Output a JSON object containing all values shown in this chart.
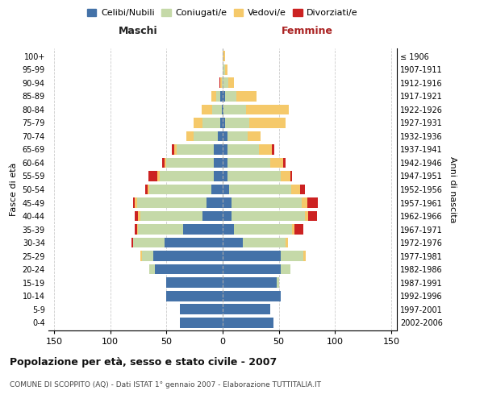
{
  "age_groups": [
    "0-4",
    "5-9",
    "10-14",
    "15-19",
    "20-24",
    "25-29",
    "30-34",
    "35-39",
    "40-44",
    "45-49",
    "50-54",
    "55-59",
    "60-64",
    "65-69",
    "70-74",
    "75-79",
    "80-84",
    "85-89",
    "90-94",
    "95-99",
    "100+"
  ],
  "birth_years": [
    "2002-2006",
    "1997-2001",
    "1992-1996",
    "1987-1991",
    "1982-1986",
    "1977-1981",
    "1972-1976",
    "1967-1971",
    "1962-1966",
    "1957-1961",
    "1952-1956",
    "1947-1951",
    "1942-1946",
    "1937-1941",
    "1932-1936",
    "1927-1931",
    "1922-1926",
    "1917-1921",
    "1912-1916",
    "1907-1911",
    "≤ 1906"
  ],
  "colors": {
    "celibe": "#4472a8",
    "coniugato": "#c5d9a8",
    "vedovo": "#f5c96a",
    "divorziato": "#cc2222"
  },
  "maschi": {
    "celibe": [
      38,
      38,
      50,
      50,
      60,
      62,
      52,
      35,
      18,
      14,
      10,
      8,
      8,
      8,
      4,
      2,
      1,
      2,
      0,
      0,
      0
    ],
    "coniugato": [
      0,
      0,
      0,
      0,
      5,
      10,
      28,
      40,
      55,
      62,
      55,
      48,
      42,
      33,
      22,
      16,
      8,
      4,
      1,
      0,
      0
    ],
    "vedovo": [
      0,
      0,
      0,
      0,
      0,
      1,
      0,
      1,
      2,
      2,
      2,
      2,
      2,
      2,
      6,
      8,
      10,
      4,
      1,
      0,
      0
    ],
    "divorziato": [
      0,
      0,
      0,
      0,
      0,
      0,
      1,
      2,
      3,
      2,
      2,
      8,
      2,
      2,
      0,
      0,
      0,
      0,
      1,
      0,
      0
    ]
  },
  "femmine": {
    "nubile": [
      45,
      42,
      52,
      48,
      52,
      52,
      18,
      10,
      8,
      8,
      6,
      4,
      4,
      4,
      4,
      2,
      1,
      2,
      0,
      0,
      0
    ],
    "coniugata": [
      0,
      0,
      0,
      2,
      8,
      20,
      38,
      52,
      65,
      62,
      55,
      48,
      38,
      28,
      18,
      22,
      20,
      10,
      5,
      2,
      0
    ],
    "vedova": [
      0,
      0,
      0,
      0,
      0,
      2,
      2,
      2,
      3,
      5,
      8,
      8,
      12,
      12,
      12,
      32,
      38,
      18,
      5,
      2,
      2
    ],
    "divorziata": [
      0,
      0,
      0,
      0,
      0,
      0,
      0,
      8,
      8,
      10,
      4,
      2,
      2,
      2,
      0,
      0,
      0,
      0,
      0,
      0,
      0
    ]
  },
  "xlim": 155,
  "title": "Popolazione per età, sesso e stato civile - 2007",
  "subtitle": "COMUNE DI SCOPPITO (AQ) - Dati ISTAT 1° gennaio 2007 - Elaborazione TUTTITALIA.IT",
  "xlabel_left": "Maschi",
  "xlabel_right": "Femmine",
  "ylabel_left": "Fasce di età",
  "ylabel_right": "Anni di nascita",
  "legend_labels": [
    "Celibi/Nubili",
    "Coniugati/e",
    "Vedovi/e",
    "Divorziati/e"
  ]
}
